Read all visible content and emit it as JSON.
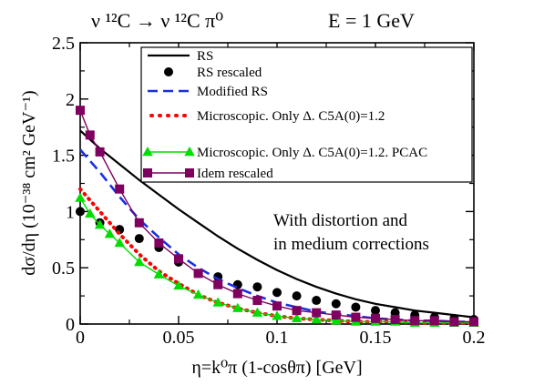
{
  "chart_data": {
    "type": "line",
    "title": {
      "reaction": "ν ¹²C → ν ¹²C π⁰",
      "energy": "E = 1 GeV"
    },
    "xlabel": "η=k⁰π (1-cosθπ) [GeV]",
    "ylabel": "dσ/dη (10⁻³⁸ cm² GeV⁻¹)",
    "xlim": [
      0,
      0.2
    ],
    "ylim": [
      0,
      2.5
    ],
    "x_ticks": [
      "0",
      "0.05",
      "0.1",
      "0.15",
      "0.2"
    ],
    "y_ticks": [
      "0",
      "0.5",
      "1",
      "1.5",
      "2",
      "2.5"
    ],
    "x_tick_values": [
      0,
      0.05,
      0.1,
      0.15,
      0.2
    ],
    "y_tick_values": [
      0,
      0.5,
      1,
      1.5,
      2,
      2.5
    ],
    "grid": false,
    "legend_position": "top-right",
    "annotation": [
      "With distortion and",
      "in medium corrections"
    ],
    "series": [
      {
        "name": "RS",
        "style": "solid-line",
        "color": "#000000",
        "x": [
          0,
          0.01,
          0.02,
          0.03,
          0.04,
          0.05,
          0.06,
          0.07,
          0.08,
          0.09,
          0.1,
          0.11,
          0.12,
          0.13,
          0.14,
          0.15,
          0.16,
          0.17,
          0.18,
          0.19,
          0.2
        ],
        "y": [
          1.72,
          1.56,
          1.42,
          1.28,
          1.15,
          1.02,
          0.9,
          0.78,
          0.67,
          0.57,
          0.48,
          0.4,
          0.33,
          0.27,
          0.22,
          0.18,
          0.15,
          0.12,
          0.1,
          0.08,
          0.06
        ]
      },
      {
        "name": "RS rescaled",
        "style": "dots",
        "color": "#000000",
        "x": [
          0,
          0.01,
          0.02,
          0.03,
          0.04,
          0.05,
          0.06,
          0.07,
          0.08,
          0.09,
          0.1,
          0.11,
          0.12,
          0.13,
          0.14,
          0.15,
          0.16,
          0.17,
          0.18,
          0.19,
          0.2
        ],
        "y": [
          1.0,
          0.9,
          0.84,
          0.76,
          0.68,
          0.55,
          0.45,
          0.42,
          0.35,
          0.33,
          0.28,
          0.25,
          0.21,
          0.18,
          0.15,
          0.12,
          0.1,
          0.08,
          0.06,
          0.05,
          0.04
        ]
      },
      {
        "name": "Modified RS",
        "style": "dashed-line",
        "color": "#1a2fe0",
        "x": [
          0,
          0.01,
          0.02,
          0.03,
          0.04,
          0.05,
          0.06,
          0.07,
          0.08,
          0.09,
          0.1,
          0.11,
          0.12,
          0.13,
          0.14,
          0.15,
          0.16,
          0.17,
          0.18,
          0.19,
          0.2
        ],
        "y": [
          1.55,
          1.35,
          1.13,
          0.93,
          0.77,
          0.62,
          0.5,
          0.4,
          0.32,
          0.25,
          0.19,
          0.15,
          0.11,
          0.09,
          0.07,
          0.05,
          0.04,
          0.03,
          0.03,
          0.02,
          0.02
        ]
      },
      {
        "name": "Microscopic. Only Δ.  C5A(0)=1.2",
        "style": "dotted-line",
        "color": "#ff0000",
        "x": [
          0,
          0.01,
          0.02,
          0.03,
          0.04,
          0.05,
          0.06,
          0.07,
          0.08,
          0.09,
          0.1,
          0.11,
          0.12,
          0.13,
          0.14,
          0.15,
          0.16,
          0.17,
          0.18,
          0.19,
          0.2
        ],
        "y": [
          1.2,
          1.0,
          0.8,
          0.62,
          0.47,
          0.36,
          0.26,
          0.19,
          0.14,
          0.1,
          0.07,
          0.05,
          0.04,
          0.03,
          0.02,
          0.02,
          0.02,
          0.01,
          0.01,
          0.01,
          0.01
        ]
      },
      {
        "name": "Microscopic. Only Δ.  C5A(0)=1.2. PCAC",
        "style": "line-triangles",
        "color": "#00dd00",
        "x": [
          0,
          0.005,
          0.01,
          0.015,
          0.02,
          0.03,
          0.04,
          0.05,
          0.06,
          0.07,
          0.08,
          0.09,
          0.1,
          0.11,
          0.12,
          0.13,
          0.14,
          0.15,
          0.16,
          0.17,
          0.18,
          0.19,
          0.2
        ],
        "y": [
          1.12,
          0.98,
          0.88,
          0.8,
          0.72,
          0.55,
          0.44,
          0.34,
          0.26,
          0.19,
          0.14,
          0.1,
          0.07,
          0.05,
          0.04,
          0.03,
          0.02,
          0.02,
          0.02,
          0.01,
          0.01,
          0.01,
          0.01
        ]
      },
      {
        "name": "Idem rescaled",
        "style": "line-squares",
        "color": "#800060",
        "x": [
          0,
          0.005,
          0.01,
          0.02,
          0.03,
          0.04,
          0.05,
          0.06,
          0.07,
          0.08,
          0.09,
          0.1,
          0.11,
          0.12,
          0.13,
          0.14,
          0.15,
          0.16,
          0.17,
          0.18,
          0.19,
          0.2
        ],
        "y": [
          1.9,
          1.68,
          1.53,
          1.2,
          0.9,
          0.72,
          0.58,
          0.45,
          0.35,
          0.27,
          0.21,
          0.16,
          0.12,
          0.1,
          0.08,
          0.06,
          0.05,
          0.04,
          0.03,
          0.03,
          0.02,
          0.02
        ]
      }
    ]
  }
}
